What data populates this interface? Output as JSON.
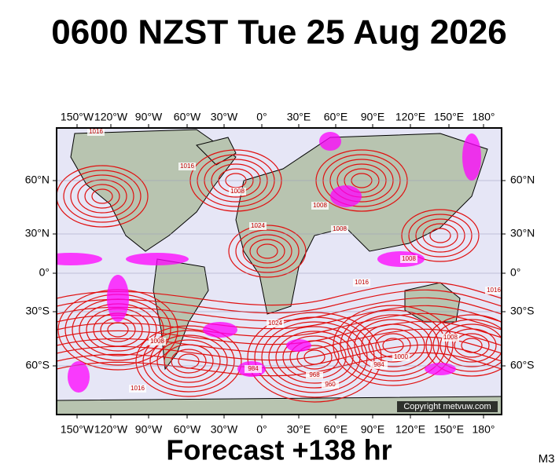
{
  "title": "0600 NZST Tue 25 Aug 2026",
  "longitude_labels": [
    "150°W",
    "120°W",
    "90°W",
    "60°W",
    "30°W",
    "0°",
    "30°E",
    "60°E",
    "90°E",
    "120°E",
    "150°E",
    "180°"
  ],
  "latitude_labels": [
    "60°N",
    "30°N",
    "0°",
    "30°S",
    "60°S"
  ],
  "isobar_labels": [
    "1016",
    "1016",
    "1008",
    "1024",
    "1008",
    "1008",
    "1008",
    "1024",
    "984",
    "968",
    "960",
    "984",
    "1000",
    "1008",
    "1016",
    "1008",
    "1016",
    "1016"
  ],
  "copyright": "Copyright metvuw.com",
  "footer": "Forecast +138 hr",
  "model": "M3"
}
